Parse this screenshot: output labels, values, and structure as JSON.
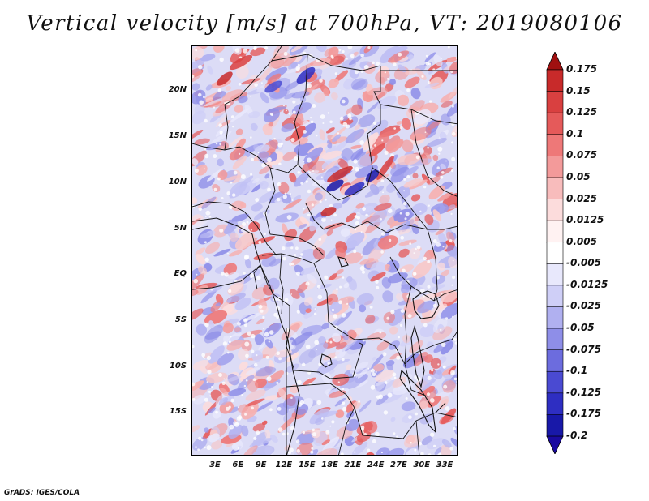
{
  "title": "Vertical velocity [m/s] at 700hPa, VT: 2019080106",
  "credit": "GrADS: IGES/COLA",
  "map": {
    "lat_labels": [
      "20N",
      "15N",
      "10N",
      "5N",
      "EQ",
      "5S",
      "10S",
      "15S"
    ],
    "lon_labels": [
      "3E",
      "6E",
      "9E",
      "12E",
      "15E",
      "18E",
      "21E",
      "24E",
      "27E",
      "30E",
      "33E"
    ],
    "region": "Central Africa",
    "variable": "vertical velocity",
    "level": "700hPa"
  },
  "colorbar": {
    "labels": [
      "0.175",
      "0.15",
      "0.125",
      "0.1",
      "0.075",
      "0.05",
      "0.025",
      "0.0125",
      "0.005",
      "-0.005",
      "-0.0125",
      "-0.025",
      "-0.05",
      "-0.075",
      "-0.1",
      "-0.125",
      "-0.175",
      "-0.2"
    ],
    "colors": [
      "#b01818",
      "#c82a2a",
      "#d94040",
      "#e55a5a",
      "#ee7878",
      "#f39a9a",
      "#f8bcbc",
      "#fcdcdc",
      "#fff2f2",
      "#ffffff",
      "#e8e8fc",
      "#cfcff7",
      "#b0b0f0",
      "#8e8ee8",
      "#6c6cde",
      "#4a4ad2",
      "#2e2ec2",
      "#1818a8",
      "#0c0c88"
    ],
    "arrow_top_color": "#a01010",
    "arrow_bottom_color": "#1a0aa0"
  }
}
